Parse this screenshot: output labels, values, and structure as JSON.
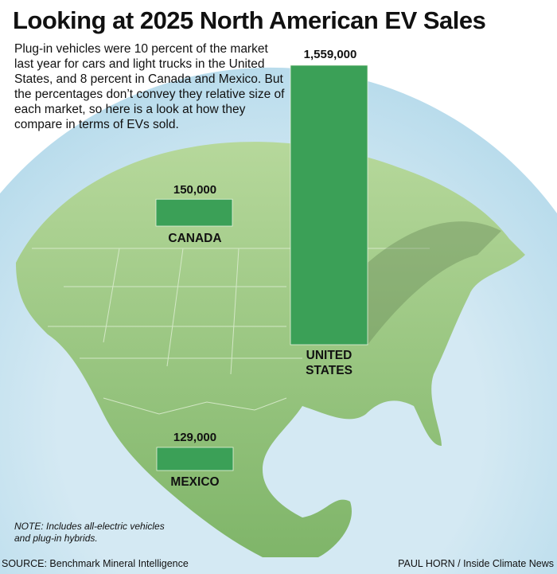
{
  "title": "Looking at 2025 North American EV Sales",
  "description": "Plug-in vehicles were 10 percent of the market last year for cars and light trucks in the United States, and 8 percent in Canada and Mexico. But the percentages don’t convey they relative size of each market, so here is a look at how they compare in terms of EVs sold.",
  "chart_data": {
    "type": "bar",
    "categories": [
      "CANADA",
      "UNITED STATES",
      "MEXICO"
    ],
    "values": [
      150000,
      1559000,
      129000
    ],
    "value_labels": [
      "150,000",
      "1,559,000",
      "129,000"
    ],
    "bar_color": "#3ba057",
    "note": "NOTE: Includes all-electric vehicles and plug-in hybrids."
  },
  "colors": {
    "land": "#8fbf74",
    "ocean": "#cfe6f1",
    "bar": "#3ba057"
  },
  "footer": {
    "source": "SOURCE: Benchmark Mineral Intelligence",
    "credit": "PAUL HORN / Inside Climate News"
  }
}
